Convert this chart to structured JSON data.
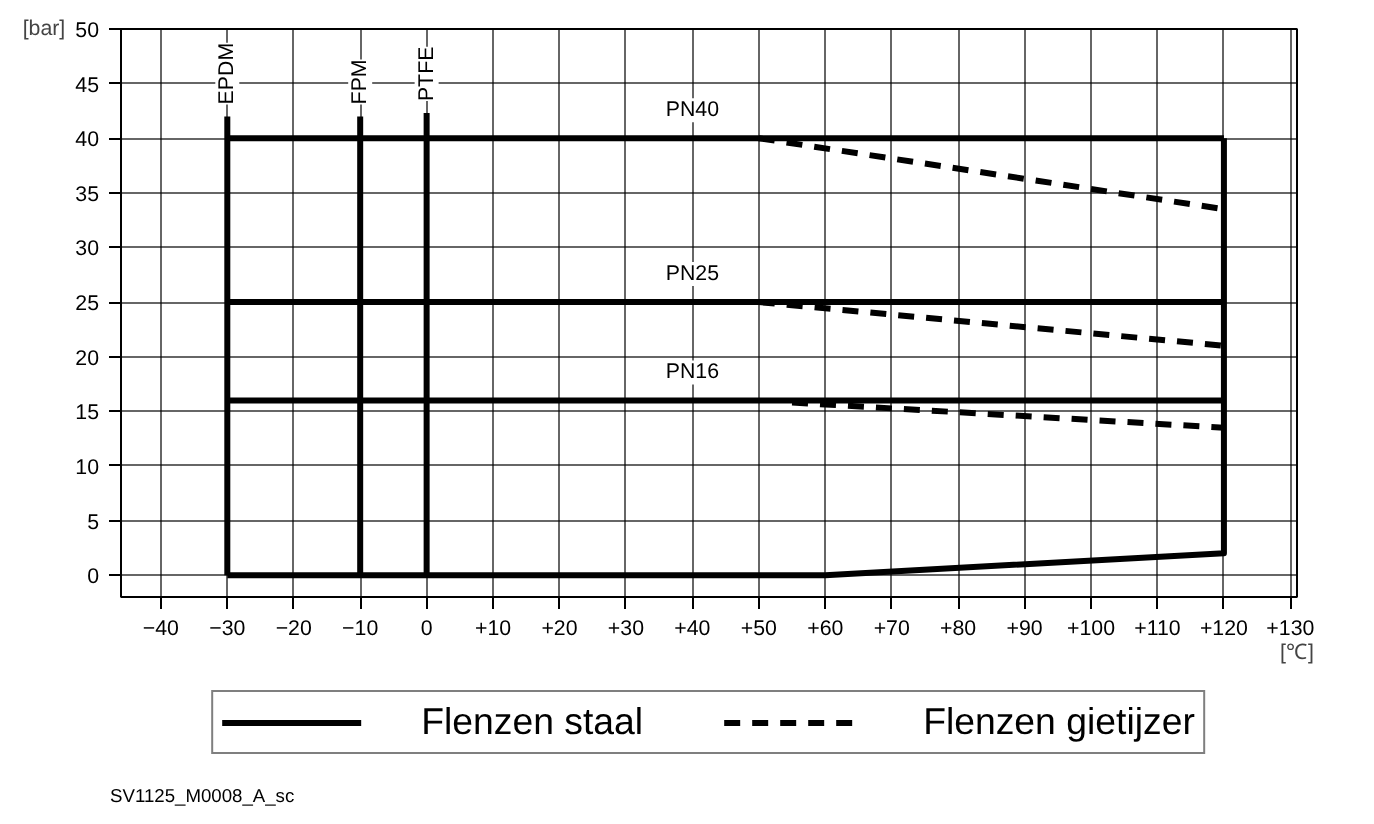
{
  "chart_data": {
    "type": "line",
    "xlabel": "[℃]",
    "ylabel": "[bar]",
    "xlim": [
      -46,
      131
    ],
    "ylim": [
      -2,
      50
    ],
    "xticks": [
      -40,
      -30,
      -20,
      -10,
      0,
      {
        "value": 10,
        "label": "+10"
      },
      {
        "value": 20,
        "label": "+20"
      },
      {
        "value": 30,
        "label": "+30"
      },
      {
        "value": 40,
        "label": "+40"
      },
      {
        "value": 50,
        "label": "+50"
      },
      {
        "value": 60,
        "label": "+60"
      },
      {
        "value": 70,
        "label": "+70"
      },
      {
        "value": 80,
        "label": "+80"
      },
      {
        "value": 90,
        "label": "+90"
      },
      {
        "value": 100,
        "label": "+100"
      },
      {
        "value": 110,
        "label": "+110"
      },
      {
        "value": 120,
        "label": "+120"
      },
      {
        "value": 130,
        "label": "+130"
      }
    ],
    "yticks": [
      0,
      5,
      10,
      15,
      20,
      25,
      30,
      35,
      40,
      45,
      50
    ],
    "grid": true,
    "legend": "bottom",
    "marker": "none",
    "series": [
      {
        "name": "Flenzen staal",
        "color": "#000000",
        "line_style": "solid",
        "x": [
          -30,
          120
        ],
        "values": [
          40,
          40
        ]
      },
      {
        "color": "#000000",
        "line_style": "solid",
        "x": [
          -30,
          120
        ],
        "values": [
          25,
          25
        ]
      },
      {
        "color": "#000000",
        "line_style": "solid",
        "x": [
          -30,
          120
        ],
        "values": [
          16,
          16
        ]
      },
      {
        "color": "#000000",
        "line_style": "solid",
        "x": [
          -30,
          60,
          120,
          120
        ],
        "values": [
          0,
          0,
          2,
          40
        ]
      },
      {
        "color": "#000000",
        "line_style": "solid",
        "x": [
          -30,
          -30
        ],
        "values": [
          0,
          42
        ]
      },
      {
        "color": "#000000",
        "line_style": "solid",
        "x": [
          -10,
          -10
        ],
        "values": [
          0,
          42
        ]
      },
      {
        "color": "#000000",
        "line_style": "solid",
        "x": [
          0,
          0
        ],
        "values": [
          0,
          42.3
        ]
      },
      {
        "name": "Flenzen gietijzer",
        "color": "#000000",
        "line_style": "dashed",
        "x": [
          50,
          120
        ],
        "values": [
          40,
          33.5
        ]
      },
      {
        "color": "#000000",
        "line_style": "dashed",
        "x": [
          50,
          120
        ],
        "values": [
          25,
          21
        ]
      },
      {
        "color": "#000000",
        "line_style": "dashed",
        "x": [
          55,
          120
        ],
        "values": [
          15.8,
          13.5
        ]
      }
    ],
    "annotations": [
      {
        "text": "EPDM",
        "x": -30,
        "y": 42
      },
      {
        "text": "FPM",
        "x": -10,
        "y": 42
      },
      {
        "text": "PTFE",
        "x": 0,
        "y": 42.3
      },
      {
        "text": "PN40",
        "x": 40,
        "y": 40
      },
      {
        "text": "PN25",
        "x": 40,
        "y": 25
      },
      {
        "text": "PN16",
        "x": 40,
        "y": 16
      },
      "SV1125_M0008_A_sc"
    ]
  }
}
